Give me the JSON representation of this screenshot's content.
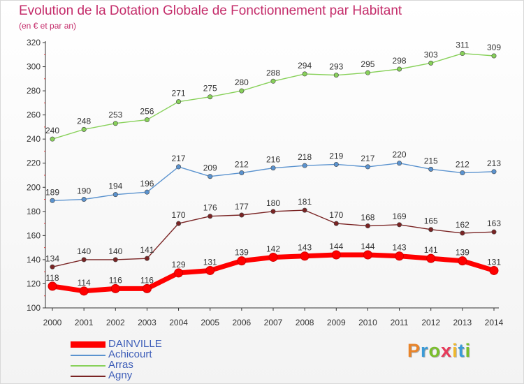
{
  "header": {
    "title": "Evolution de la Dotation Globale de Fonctionnement par Habitant",
    "subtitle": "(en € et par an)"
  },
  "brand": {
    "text": "Proxiti",
    "colors": [
      "#e8842a",
      "#3a9bd8",
      "#7abf2c",
      "#e83a5a",
      "#f0b82a",
      "#3a9bd8",
      "#7abf2c"
    ]
  },
  "chart_data": {
    "type": "line",
    "x": [
      "2000",
      "2001",
      "2002",
      "2003",
      "2004",
      "2005",
      "2006",
      "2007",
      "2008",
      "2009",
      "2010",
      "2011",
      "2012",
      "2013",
      "2014"
    ],
    "ylim": [
      100,
      320
    ],
    "yticks": [
      "100",
      "120",
      "140",
      "160",
      "180",
      "200",
      "220",
      "240",
      "260",
      "280",
      "300",
      "320"
    ],
    "grid": false,
    "legend_position": "bottom-left",
    "series": [
      {
        "name": "DAINVILLE",
        "color": "#ff0000",
        "values": [
          118,
          114,
          116,
          116,
          129,
          131,
          139,
          142,
          143,
          144,
          144,
          143,
          141,
          139,
          131
        ]
      },
      {
        "name": "Achicourt",
        "color": "#5b93cf",
        "values": [
          189,
          190,
          194,
          196,
          217,
          209,
          212,
          216,
          218,
          219,
          217,
          220,
          215,
          212,
          213
        ]
      },
      {
        "name": "Arras",
        "color": "#88d15a",
        "values": [
          240,
          248,
          253,
          256,
          271,
          275,
          280,
          288,
          294,
          293,
          295,
          298,
          303,
          311,
          309
        ]
      },
      {
        "name": "Agny",
        "color": "#7a2424",
        "values": [
          134,
          140,
          140,
          141,
          170,
          176,
          177,
          180,
          181,
          170,
          168,
          169,
          165,
          162,
          163
        ]
      }
    ]
  }
}
